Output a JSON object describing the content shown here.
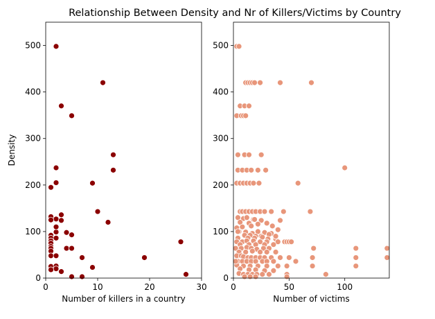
{
  "chart_data": {
    "title": "Relationship Between Density and Nr of Killers/Victims by Country",
    "charts": [
      {
        "type": "scatter",
        "xlabel": "Number of killers in a country",
        "ylabel": "Density",
        "xlim": [
          0,
          30
        ],
        "ylim": [
          0,
          550
        ],
        "xticks": [
          0,
          10,
          20,
          30
        ],
        "yticks": [
          0,
          100,
          200,
          300,
          400,
          500
        ],
        "color": "#8b0000",
        "points": [
          [
            2,
            498
          ],
          [
            11,
            420
          ],
          [
            3,
            370
          ],
          [
            5,
            349
          ],
          [
            13,
            265
          ],
          [
            2,
            237
          ],
          [
            13,
            232
          ],
          [
            9,
            204
          ],
          [
            2,
            205
          ],
          [
            1,
            195
          ],
          [
            10,
            143
          ],
          [
            1,
            132
          ],
          [
            2,
            127
          ],
          [
            3,
            136
          ],
          [
            5,
            93
          ],
          [
            1,
            125
          ],
          [
            3,
            124
          ],
          [
            12,
            120
          ],
          [
            1,
            92
          ],
          [
            2,
            99
          ],
          [
            2,
            110
          ],
          [
            4,
            98
          ],
          [
            1,
            86
          ],
          [
            2,
            86
          ],
          [
            1,
            80
          ],
          [
            1,
            75
          ],
          [
            1,
            68
          ],
          [
            1,
            64
          ],
          [
            4,
            64
          ],
          [
            5,
            64
          ],
          [
            1,
            58
          ],
          [
            1,
            48
          ],
          [
            2,
            48
          ],
          [
            7,
            44
          ],
          [
            19,
            44
          ],
          [
            1,
            25
          ],
          [
            2,
            26
          ],
          [
            2,
            20
          ],
          [
            1,
            18
          ],
          [
            3,
            14
          ],
          [
            9,
            23
          ],
          [
            26,
            78
          ],
          [
            27,
            8
          ],
          [
            5,
            3
          ],
          [
            7,
            3
          ]
        ]
      },
      {
        "type": "scatter",
        "xlabel": "Number of victims",
        "ylabel": "",
        "xlim": [
          0,
          140
        ],
        "ylim": [
          0,
          550
        ],
        "xticks": [
          0,
          50,
          100
        ],
        "yticks": [
          0,
          100,
          200,
          300,
          400,
          500
        ],
        "color": "#e8967a",
        "points": [
          [
            3,
            498
          ],
          [
            5,
            498
          ],
          [
            11,
            420
          ],
          [
            13,
            420
          ],
          [
            15,
            420
          ],
          [
            17,
            420
          ],
          [
            19,
            420
          ],
          [
            24,
            420
          ],
          [
            42,
            420
          ],
          [
            70,
            420
          ],
          [
            6,
            370
          ],
          [
            10,
            370
          ],
          [
            14,
            370
          ],
          [
            3,
            349
          ],
          [
            7,
            349
          ],
          [
            9,
            349
          ],
          [
            11,
            349
          ],
          [
            4,
            265
          ],
          [
            10,
            265
          ],
          [
            14,
            265
          ],
          [
            25,
            265
          ],
          [
            4,
            232
          ],
          [
            8,
            232
          ],
          [
            12,
            232
          ],
          [
            16,
            232
          ],
          [
            22,
            232
          ],
          [
            29,
            232
          ],
          [
            100,
            237
          ],
          [
            3,
            204
          ],
          [
            6,
            204
          ],
          [
            9,
            204
          ],
          [
            12,
            204
          ],
          [
            15,
            204
          ],
          [
            18,
            204
          ],
          [
            23,
            204
          ],
          [
            58,
            204
          ],
          [
            6,
            143
          ],
          [
            8,
            143
          ],
          [
            11,
            143
          ],
          [
            14,
            143
          ],
          [
            17,
            143
          ],
          [
            20,
            143
          ],
          [
            24,
            143
          ],
          [
            28,
            143
          ],
          [
            34,
            143
          ],
          [
            45,
            143
          ],
          [
            69,
            143
          ],
          [
            4,
            130
          ],
          [
            9,
            128
          ],
          [
            12,
            130
          ],
          [
            18,
            126
          ],
          [
            25,
            124
          ],
          [
            42,
            124
          ],
          [
            6,
            120
          ],
          [
            14,
            118
          ],
          [
            22,
            116
          ],
          [
            30,
            118
          ],
          [
            3,
            108
          ],
          [
            8,
            110
          ],
          [
            16,
            112
          ],
          [
            35,
            112
          ],
          [
            40,
            104
          ],
          [
            5,
            100
          ],
          [
            11,
            99
          ],
          [
            17,
            96
          ],
          [
            22,
            100
          ],
          [
            28,
            98
          ],
          [
            34,
            96
          ],
          [
            10,
            92
          ],
          [
            15,
            92
          ],
          [
            20,
            90
          ],
          [
            25,
            90
          ],
          [
            32,
            94
          ],
          [
            38,
            84
          ],
          [
            4,
            86
          ],
          [
            13,
            86
          ],
          [
            19,
            86
          ],
          [
            26,
            88
          ],
          [
            31,
            84
          ],
          [
            38,
            90
          ],
          [
            3,
            78
          ],
          [
            8,
            78
          ],
          [
            12,
            80
          ],
          [
            18,
            80
          ],
          [
            24,
            78
          ],
          [
            30,
            78
          ],
          [
            40,
            78
          ],
          [
            46,
            78
          ],
          [
            48,
            78
          ],
          [
            50,
            78
          ],
          [
            52,
            78
          ],
          [
            6,
            72
          ],
          [
            14,
            72
          ],
          [
            20,
            72
          ],
          [
            28,
            72
          ],
          [
            36,
            72
          ],
          [
            2,
            64
          ],
          [
            7,
            64
          ],
          [
            12,
            66
          ],
          [
            16,
            64
          ],
          [
            21,
            62
          ],
          [
            27,
            64
          ],
          [
            32,
            64
          ],
          [
            72,
            64
          ],
          [
            110,
            64
          ],
          [
            138,
            64
          ],
          [
            5,
            56
          ],
          [
            11,
            56
          ],
          [
            17,
            58
          ],
          [
            24,
            56
          ],
          [
            30,
            56
          ],
          [
            38,
            56
          ],
          [
            3,
            48
          ],
          [
            7,
            48
          ],
          [
            9,
            46
          ],
          [
            13,
            44
          ],
          [
            16,
            44
          ],
          [
            20,
            44
          ],
          [
            24,
            44
          ],
          [
            28,
            44
          ],
          [
            34,
            44
          ],
          [
            42,
            44
          ],
          [
            50,
            44
          ],
          [
            71,
            44
          ],
          [
            110,
            44
          ],
          [
            138,
            44
          ],
          [
            4,
            36
          ],
          [
            8,
            36
          ],
          [
            12,
            36
          ],
          [
            16,
            36
          ],
          [
            20,
            36
          ],
          [
            26,
            36
          ],
          [
            30,
            36
          ],
          [
            36,
            36
          ],
          [
            56,
            36
          ],
          [
            3,
            28
          ],
          [
            9,
            26
          ],
          [
            15,
            26
          ],
          [
            22,
            26
          ],
          [
            30,
            26
          ],
          [
            40,
            26
          ],
          [
            48,
            26
          ],
          [
            71,
            26
          ],
          [
            110,
            26
          ],
          [
            6,
            20
          ],
          [
            14,
            18
          ],
          [
            20,
            18
          ],
          [
            28,
            16
          ],
          [
            36,
            16
          ],
          [
            5,
            10
          ],
          [
            9,
            8
          ],
          [
            13,
            8
          ],
          [
            17,
            8
          ],
          [
            21,
            8
          ],
          [
            26,
            8
          ],
          [
            32,
            8
          ],
          [
            48,
            8
          ],
          [
            83,
            8
          ],
          [
            10,
            3
          ],
          [
            15,
            3
          ],
          [
            20,
            3
          ],
          [
            48,
            3
          ],
          [
            2,
            36
          ],
          [
            4,
            100
          ],
          [
            19,
            126
          ]
        ]
      }
    ]
  }
}
